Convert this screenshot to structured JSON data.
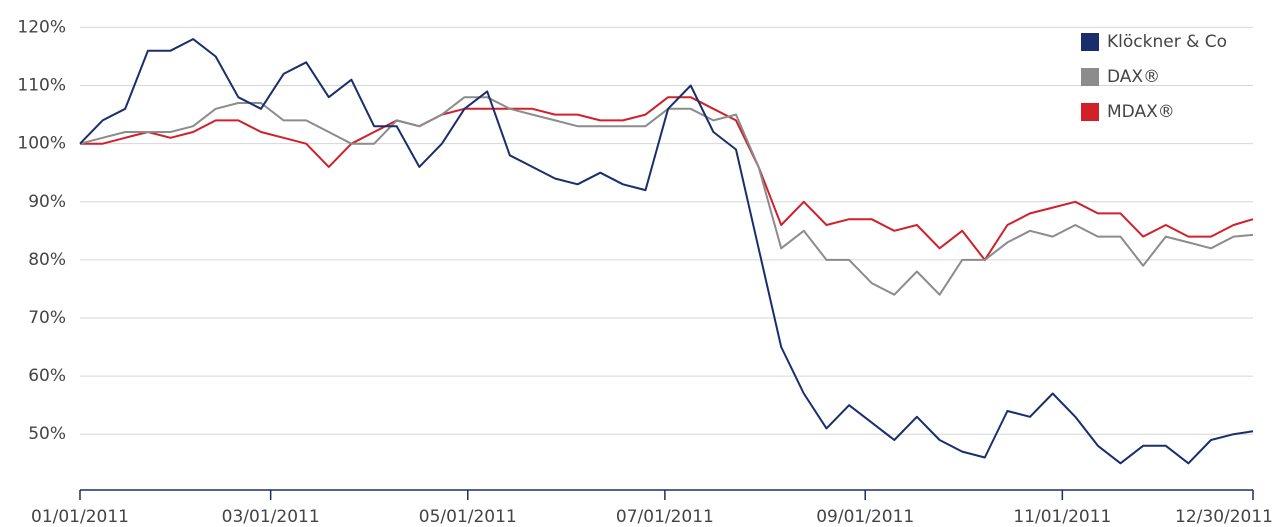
{
  "chart_data": {
    "type": "line",
    "x": [
      "01/01/2011",
      "01/08/2011",
      "01/15/2011",
      "01/22/2011",
      "01/29/2011",
      "02/05/2011",
      "02/12/2011",
      "02/19/2011",
      "02/26/2011",
      "03/05/2011",
      "03/12/2011",
      "03/19/2011",
      "03/26/2011",
      "04/02/2011",
      "04/09/2011",
      "04/16/2011",
      "04/23/2011",
      "04/30/2011",
      "05/07/2011",
      "05/14/2011",
      "05/21/2011",
      "05/28/2011",
      "06/04/2011",
      "06/11/2011",
      "06/18/2011",
      "06/25/2011",
      "07/02/2011",
      "07/09/2011",
      "07/16/2011",
      "07/23/2011",
      "07/30/2011",
      "08/06/2011",
      "08/13/2011",
      "08/20/2011",
      "08/27/2011",
      "09/03/2011",
      "09/10/2011",
      "09/17/2011",
      "09/24/2011",
      "10/01/2011",
      "10/08/2011",
      "10/15/2011",
      "10/22/2011",
      "10/29/2011",
      "11/05/2011",
      "11/12/2011",
      "11/19/2011",
      "11/26/2011",
      "12/03/2011",
      "12/10/2011",
      "12/17/2011",
      "12/24/2011",
      "12/30/2011"
    ],
    "series": [
      {
        "name": "Klöckner & Co",
        "color": "#1a2e6c",
        "values": [
          100,
          104,
          106,
          116,
          116,
          118,
          115,
          108,
          106,
          112,
          114,
          108,
          111,
          103,
          103,
          96,
          100,
          106,
          109,
          98,
          96,
          94,
          93,
          95,
          93,
          92,
          106,
          110,
          102,
          99,
          82,
          65,
          57,
          51,
          55,
          52,
          49,
          53,
          49,
          47,
          46,
          54,
          53,
          57,
          53,
          48,
          45,
          48,
          48,
          45,
          49,
          50,
          50.5
        ]
      },
      {
        "name": "DAX®",
        "color": "#8c8c8c",
        "values": [
          100,
          101,
          102,
          102,
          102,
          103,
          106,
          107,
          107,
          104,
          104,
          102,
          100,
          100,
          104,
          103,
          105,
          108,
          108,
          106,
          105,
          104,
          103,
          103,
          103,
          103,
          106,
          106,
          104,
          105,
          96,
          82,
          85,
          80,
          80,
          76,
          74,
          78,
          74,
          80,
          80,
          83,
          85,
          84,
          86,
          84,
          84,
          79,
          84,
          83,
          82,
          84,
          84.3
        ]
      },
      {
        "name": "MDAX®",
        "color": "#d0202a",
        "values": [
          100,
          100,
          101,
          102,
          101,
          102,
          104,
          104,
          102,
          101,
          100,
          96,
          100,
          102,
          104,
          103,
          105,
          106,
          106,
          106,
          106,
          105,
          105,
          104,
          104,
          105,
          108,
          108,
          106,
          104,
          96,
          86,
          90,
          86,
          87,
          87,
          85,
          86,
          82,
          85,
          80,
          86,
          88,
          89,
          90,
          88,
          88,
          84,
          86,
          84,
          84,
          86,
          87
        ]
      }
    ],
    "xlim": [
      "01/01/2011",
      "12/30/2011"
    ],
    "xticks": [
      "01/01/2011",
      "03/01/2011",
      "05/01/2011",
      "07/01/2011",
      "09/01/2011",
      "11/01/2011",
      "12/30/2011"
    ],
    "ylim": [
      40.4,
      123
    ],
    "yticks": [
      {
        "value": 50,
        "label": "50%"
      },
      {
        "value": 60,
        "label": "60%"
      },
      {
        "value": 70,
        "label": "70%"
      },
      {
        "value": 80,
        "label": "80%"
      },
      {
        "value": 90,
        "label": "90%"
      },
      {
        "value": 100,
        "label": "100%"
      },
      {
        "value": 110,
        "label": "110%"
      },
      {
        "value": 120,
        "label": "120%"
      }
    ],
    "grid": true,
    "legend": "top-right"
  }
}
